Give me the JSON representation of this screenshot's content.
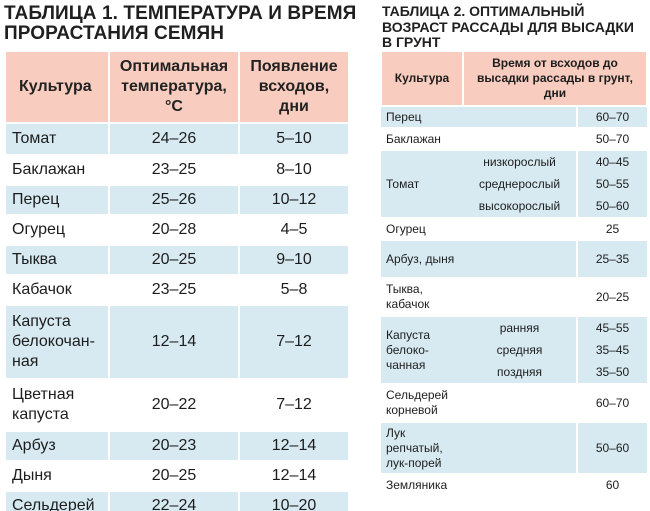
{
  "table1": {
    "title": "ТАБЛИЦА 1. ТЕМПЕРАТУРА И ВРЕМЯ ПРОРАСТАНИЯ СЕМЯН",
    "headers": [
      "Культура",
      "Оптимальная температура, °С",
      "Появление всходов, дни"
    ],
    "rows": [
      [
        "Томат",
        "24–26",
        "5–10"
      ],
      [
        "Баклажан",
        "23–25",
        "8–10"
      ],
      [
        "Перец",
        "25–26",
        "10–12"
      ],
      [
        "Огурец",
        "20–28",
        "4–5"
      ],
      [
        "Тыква",
        "20–25",
        "9–10"
      ],
      [
        "Кабачок",
        "23–25",
        "5–8"
      ],
      [
        "Капуста белокочан-ная",
        "12–14",
        "7–12"
      ],
      [
        "Цветная капуста",
        "20–22",
        "7–12"
      ],
      [
        "Арбуз",
        "20–23",
        "12–14"
      ],
      [
        "Дыня",
        "20–25",
        "12–14"
      ],
      [
        "Сельдерей",
        "22–24",
        "10–20"
      ]
    ]
  },
  "table2": {
    "title": "ТАБЛИЦА 2. ОПТИМАЛЬНЫЙ ВОЗРАСТ РАССАДЫ ДЛЯ ВЫСАДКИ В ГРУНТ",
    "headers": [
      "Культура",
      "Время от всходов до высадки рассады в грунт, дни"
    ],
    "rows": [
      {
        "crop": "Перец",
        "varieties": [],
        "days": [
          "60–70"
        ]
      },
      {
        "crop": "Баклажан",
        "varieties": [],
        "days": [
          "50–70"
        ]
      },
      {
        "crop": "Томат",
        "varieties": [
          "низкорослый",
          "среднерослый",
          "высокорослый"
        ],
        "days": [
          "40–45",
          "50–55",
          "50–60"
        ]
      },
      {
        "crop": "Огурец",
        "varieties": [],
        "days": [
          "25"
        ]
      },
      {
        "crop": "Арбуз, дыня",
        "varieties": [],
        "days": [
          "25–35"
        ]
      },
      {
        "crop": "Тыква, кабачок",
        "varieties": [],
        "days": [
          "20–25"
        ]
      },
      {
        "crop": "Капуста белоко-чанная",
        "varieties": [
          "ранняя",
          "средняя",
          "поздняя"
        ],
        "days": [
          "45–55",
          "35–45",
          "35–50"
        ]
      },
      {
        "crop": "Сельдерей корневой",
        "varieties": [],
        "days": [
          "60–70"
        ]
      },
      {
        "crop": "Лук репчатый, лук-порей",
        "varieties": [],
        "days": [
          "50–60"
        ]
      },
      {
        "crop": "Земляника",
        "varieties": [],
        "days": [
          "60"
        ]
      }
    ]
  },
  "colors": {
    "header_bg": "#f8cdbf",
    "stripe_bg": "#d7eaf1",
    "plain_bg": "#ffffff"
  }
}
